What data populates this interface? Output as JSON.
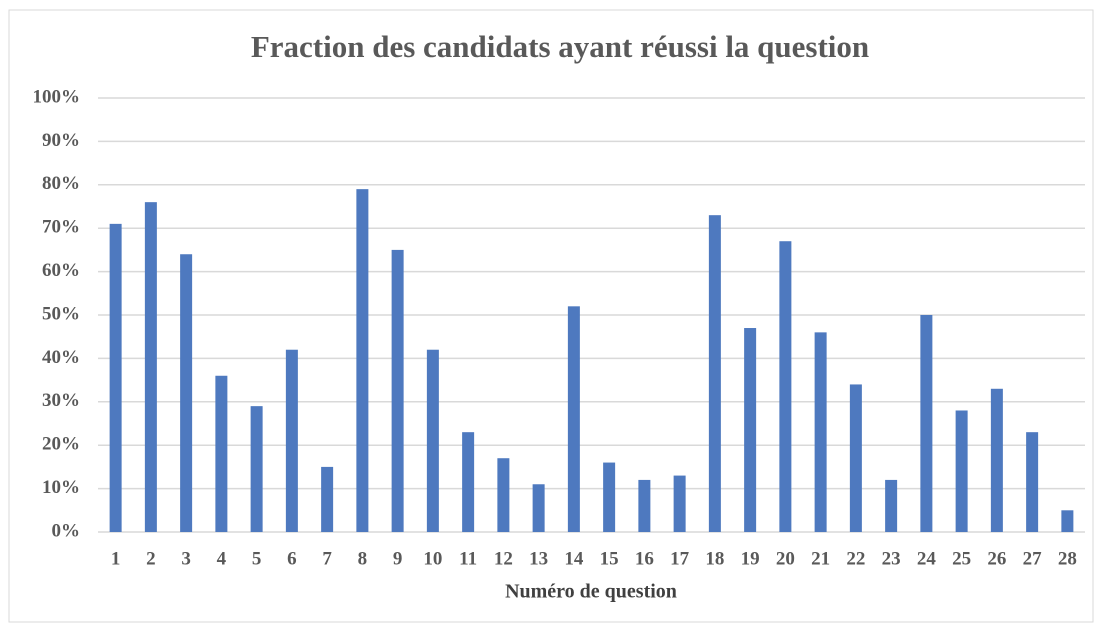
{
  "chart_data": {
    "type": "bar",
    "title": "Fraction des candidats ayant réussi la question",
    "x_label": "Numéro de question",
    "categories": [
      "1",
      "2",
      "3",
      "4",
      "5",
      "6",
      "7",
      "8",
      "9",
      "10",
      "11",
      "12",
      "13",
      "14",
      "15",
      "16",
      "17",
      "18",
      "19",
      "20",
      "21",
      "22",
      "23",
      "24",
      "25",
      "26",
      "27",
      "28"
    ],
    "values": [
      71,
      76,
      64,
      36,
      29,
      42,
      15,
      79,
      65,
      42,
      23,
      17,
      11,
      52,
      16,
      12,
      13,
      73,
      47,
      67,
      46,
      34,
      12,
      50,
      28,
      33,
      23,
      5
    ],
    "color": "#4e79bf",
    "ylim": [
      0,
      100
    ],
    "yticks": [
      {
        "value": 0,
        "label": "0%"
      },
      {
        "value": 10,
        "label": "10%"
      },
      {
        "value": 20,
        "label": "20%"
      },
      {
        "value": 30,
        "label": "30%"
      },
      {
        "value": 40,
        "label": "40%"
      },
      {
        "value": 50,
        "label": "50%"
      },
      {
        "value": 60,
        "label": "60%"
      },
      {
        "value": 70,
        "label": "70%"
      },
      {
        "value": 80,
        "label": "80%"
      },
      {
        "value": 90,
        "label": "90%"
      },
      {
        "value": 100,
        "label": "100%"
      }
    ],
    "grid": true
  }
}
